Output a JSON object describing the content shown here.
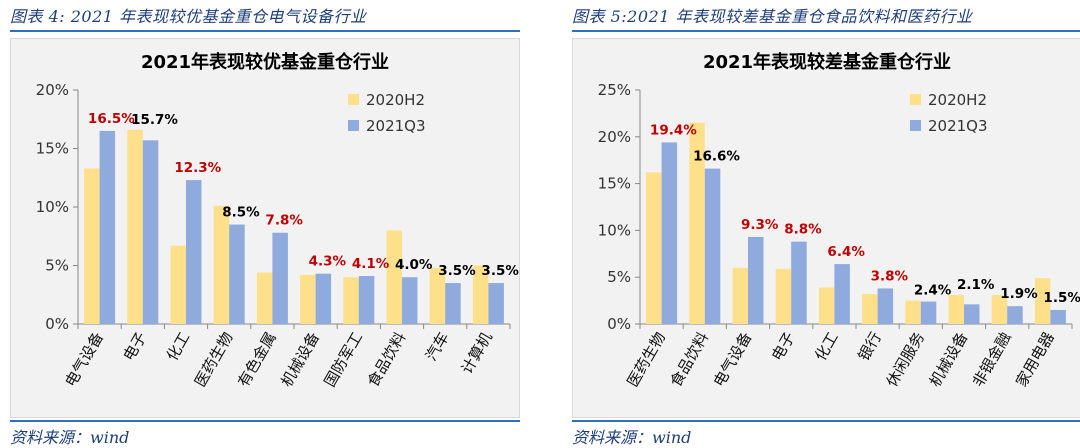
{
  "charts": [
    {
      "id": "left",
      "figure_title": "图表 4:   2021 年表现较优基金重仓电气设备行业",
      "source": "资料来源：wind",
      "chart_data": {
        "type": "bar",
        "title": "2021年表现较优基金重仓行业",
        "categories": [
          "电气设备",
          "电子",
          "化工",
          "医药生物",
          "有色金属",
          "机械设备",
          "国防军工",
          "食品饮料",
          "汽车",
          "计算机"
        ],
        "series": [
          {
            "name": "2020H2",
            "color": "#ffe08a",
            "values": [
              13.3,
              16.6,
              6.7,
              10.1,
              4.4,
              4.2,
              4.0,
              8.0,
              4.8,
              5.0
            ]
          },
          {
            "name": "2021Q3",
            "color": "#8faadc",
            "values": [
              16.5,
              15.7,
              12.3,
              8.5,
              7.8,
              4.3,
              4.1,
              4.0,
              3.5,
              3.5
            ]
          }
        ],
        "data_labels": [
          "16.5%",
          "15.7%",
          "12.3%",
          "8.5%",
          "7.8%",
          "4.3%",
          "4.1%",
          "4.0%",
          "3.5%",
          "3.5%"
        ],
        "label_colors": [
          "#c00000",
          "#000000",
          "#c00000",
          "#000000",
          "#c00000",
          "#c00000",
          "#c00000",
          "#000000",
          "#000000",
          "#000000"
        ],
        "yticks": [
          "0%",
          "5%",
          "10%",
          "15%",
          "20%"
        ],
        "ylim": [
          0,
          20
        ],
        "legend": "top-right",
        "grid": false
      }
    },
    {
      "id": "right",
      "figure_title": "图表 5:2021 年表现较差基金重仓食品饮料和医药行业",
      "source": "资料来源：wind",
      "chart_data": {
        "type": "bar",
        "title": "2021年表现较差基金重仓行业",
        "categories": [
          "医药生物",
          "食品饮料",
          "电气设备",
          "电子",
          "化工",
          "银行",
          "休闲服务",
          "机械设备",
          "非银金融",
          "家用电器"
        ],
        "series": [
          {
            "name": "2020H2",
            "color": "#ffe08a",
            "values": [
              16.2,
              21.5,
              6.0,
              5.9,
              3.9,
              3.2,
              2.5,
              3.1,
              3.1,
              4.9
            ]
          },
          {
            "name": "2021Q3",
            "color": "#8faadc",
            "values": [
              19.4,
              16.6,
              9.3,
              8.8,
              6.4,
              3.8,
              2.4,
              2.1,
              1.9,
              1.5
            ]
          }
        ],
        "data_labels": [
          "19.4%",
          "16.6%",
          "9.3%",
          "8.8%",
          "6.4%",
          "3.8%",
          "2.4%",
          "2.1%",
          "1.9%",
          "1.5%"
        ],
        "label_colors": [
          "#c00000",
          "#000000",
          "#c00000",
          "#c00000",
          "#c00000",
          "#c00000",
          "#000000",
          "#000000",
          "#000000",
          "#000000"
        ],
        "yticks": [
          "0%",
          "5%",
          "10%",
          "15%",
          "20%",
          "25%"
        ],
        "ylim": [
          0,
          25
        ],
        "legend": "top-right",
        "grid": false
      }
    }
  ]
}
